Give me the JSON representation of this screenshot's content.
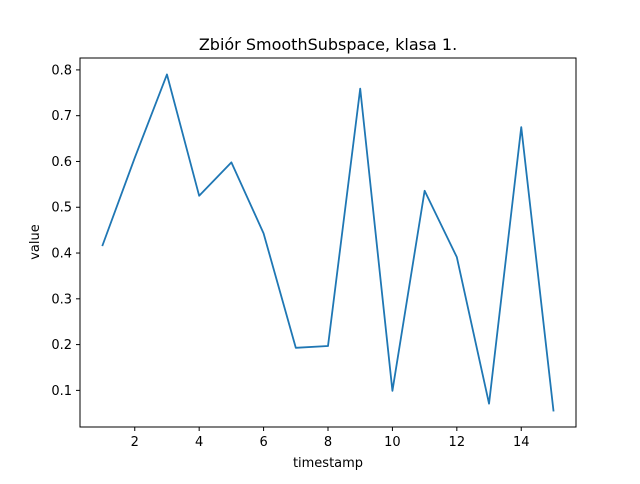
{
  "chart_data": {
    "type": "line",
    "title": "Zbiór SmoothSubspace, klasa 1.",
    "xlabel": "timestamp",
    "ylabel": "value",
    "x": [
      1,
      2,
      3,
      4,
      5,
      6,
      7,
      8,
      9,
      10,
      11,
      12,
      13,
      14,
      15
    ],
    "series": [
      {
        "values": [
          0.417,
          0.608,
          0.79,
          0.525,
          0.598,
          0.443,
          0.193,
          0.197,
          0.759,
          0.099,
          0.536,
          0.391,
          0.071,
          0.675,
          0.056
        ]
      }
    ],
    "xlim": [
      0.3,
      15.7
    ],
    "ylim": [
      0.02,
      0.826
    ],
    "xticks": [
      2,
      4,
      6,
      8,
      10,
      12,
      14
    ],
    "yticks": [
      0.1,
      0.2,
      0.3,
      0.4,
      0.5,
      0.6,
      0.7,
      0.8
    ],
    "xtick_labels": [
      "2",
      "4",
      "6",
      "8",
      "10",
      "12",
      "14"
    ],
    "ytick_labels": [
      "0.1",
      "0.2",
      "0.3",
      "0.4",
      "0.5",
      "0.6",
      "0.7",
      "0.8"
    ],
    "grid": false,
    "line_color": "#1f77b4"
  }
}
